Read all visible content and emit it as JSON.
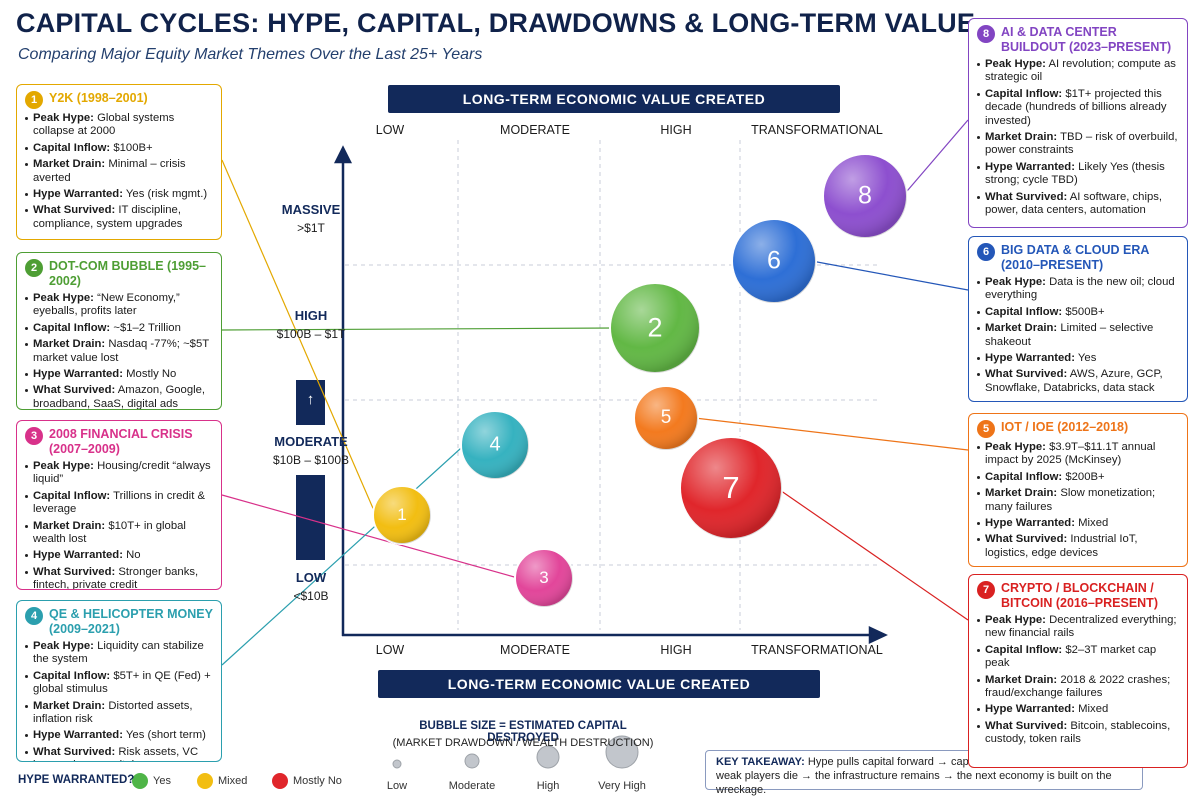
{
  "header": {
    "title": "CAPITAL CYCLES: HYPE, CAPITAL, DRAWDOWNS & LONG-TERM VALUE",
    "subtitle": "Comparing Major Equity Market Themes Over the Last 25+ Years"
  },
  "panels": [
    {
      "number": "1",
      "title": "Y2K (1998–2001)",
      "color": "#e3a800",
      "items": [
        {
          "label": "Peak Hype:",
          "text": "Global systems collapse at 2000"
        },
        {
          "label": "Capital Inflow:",
          "text": "$100B+"
        },
        {
          "label": "Market Drain:",
          "text": "Minimal – crisis averted"
        },
        {
          "label": "Hype Warranted:",
          "text": "Yes (risk mgmt.)"
        },
        {
          "label": "What Survived:",
          "text": "IT discipline, compliance, system upgrades"
        }
      ]
    },
    {
      "number": "2",
      "title": "DOT-COM BUBBLE (1995–2002)",
      "color": "#4e9e34",
      "items": [
        {
          "label": "Peak Hype:",
          "text": "“New Economy,” eyeballs, profits later"
        },
        {
          "label": "Capital Inflow:",
          "text": "~$1–2 Trillion"
        },
        {
          "label": "Market Drain:",
          "text": "Nasdaq -77%; ~$5T market value lost"
        },
        {
          "label": "Hype Warranted:",
          "text": "Mostly No"
        },
        {
          "label": "What Survived:",
          "text": "Amazon, Google, broadband, SaaS, digital ads"
        }
      ]
    },
    {
      "number": "3",
      "title": "2008 FINANCIAL CRISIS (2007–2009)",
      "color": "#d8318a",
      "items": [
        {
          "label": "Peak Hype:",
          "text": "Housing/credit “always liquid”"
        },
        {
          "label": "Capital Inflow:",
          "text": "Trillions in credit & leverage"
        },
        {
          "label": "Market Drain:",
          "text": "$10T+ in global wealth lost"
        },
        {
          "label": "Hype Warranted:",
          "text": "No"
        },
        {
          "label": "What Survived:",
          "text": "Stronger banks, fintech, private credit"
        }
      ]
    },
    {
      "number": "4",
      "title": "QE & HELICOPTER MONEY (2009–2021)",
      "color": "#2b9fae",
      "items": [
        {
          "label": "Peak Hype:",
          "text": "Liquidity can stabilize the system"
        },
        {
          "label": "Capital Inflow:",
          "text": "$5T+ in QE (Fed) + global stimulus"
        },
        {
          "label": "Market Drain:",
          "text": "Distorted assets, inflation risk"
        },
        {
          "label": "Hype Warranted:",
          "text": "Yes (short term)"
        },
        {
          "label": "What Survived:",
          "text": "Risk assets, VC boom, cheap capital economy"
        }
      ]
    },
    {
      "number": "8",
      "title": "AI & DATA CENTER BUILDOUT (2023–PRESENT)",
      "color": "#8245c2",
      "items": [
        {
          "label": "Peak Hype:",
          "text": "AI revolution; compute as strategic oil"
        },
        {
          "label": "Capital Inflow:",
          "text": "$1T+ projected this decade (hundreds of billions already invested)"
        },
        {
          "label": "Market Drain:",
          "text": "TBD – risk of overbuild, power constraints"
        },
        {
          "label": "Hype Warranted:",
          "text": "Likely Yes (thesis strong; cycle TBD)"
        },
        {
          "label": "What Survived:",
          "text": "AI software, chips, power, data centers, automation"
        }
      ]
    },
    {
      "number": "6",
      "title": "BIG DATA & CLOUD ERA (2010–PRESENT)",
      "color": "#2457b8",
      "items": [
        {
          "label": "Peak Hype:",
          "text": "Data is the new oil; cloud everything"
        },
        {
          "label": "Capital Inflow:",
          "text": "$500B+"
        },
        {
          "label": "Market Drain:",
          "text": "Limited – selective shakeout"
        },
        {
          "label": "Hype Warranted:",
          "text": "Yes"
        },
        {
          "label": "What Survived:",
          "text": "AWS, Azure, GCP, Snowflake, Databricks, data stack"
        }
      ]
    },
    {
      "number": "5",
      "title": "IOT / IOE (2012–2018)",
      "color": "#ee7418",
      "items": [
        {
          "label": "Peak Hype:",
          "text": "$3.9T–$11.1T annual impact by 2025 (McKinsey)"
        },
        {
          "label": "Capital Inflow:",
          "text": "$200B+"
        },
        {
          "label": "Market Drain:",
          "text": "Slow monetization; many failures"
        },
        {
          "label": "Hype Warranted:",
          "text": "Mixed"
        },
        {
          "label": "What Survived:",
          "text": "Industrial IoT, logistics, edge devices"
        }
      ]
    },
    {
      "number": "7",
      "title": "CRYPTO / BLOCKCHAIN / BITCOIN (2016–PRESENT)",
      "color": "#d92121",
      "items": [
        {
          "label": "Peak Hype:",
          "text": "Decentralized everything; new financial rails"
        },
        {
          "label": "Capital Inflow:",
          "text": "$2–3T market cap peak"
        },
        {
          "label": "Market Drain:",
          "text": "2018 & 2022 crashes; fraud/exchange failures"
        },
        {
          "label": "Hype Warranted:",
          "text": "Mixed"
        },
        {
          "label": "What Survived:",
          "text": "Bitcoin, stablecoins, custody, token rails"
        }
      ]
    }
  ],
  "matrix": {
    "top_banner": "LONG-TERM ECONOMIC VALUE CREATED",
    "top_levels": [
      "LOW",
      "MODERATE",
      "HIGH",
      "TRANSFORMATIONAL"
    ],
    "bottom_levels": [
      "LOW",
      "MODERATE",
      "HIGH",
      "TRANSFORMATIONAL"
    ],
    "bottom_banner": "LONG-TERM ECONOMIC VALUE CREATED",
    "y_levels": [
      {
        "name": "MASSIVE",
        "range": ">$1T"
      },
      {
        "name": "HIGH",
        "range": "$100B – $1T"
      },
      {
        "name": "MODERATE",
        "range": "$10B – $100B"
      },
      {
        "name": "LOW",
        "range": "<$10B"
      }
    ],
    "arrow": "↑",
    "bubbles": [
      {
        "label": "1",
        "color": "#f2be12"
      },
      {
        "label": "2",
        "color": "#62b845"
      },
      {
        "label": "3",
        "color": "#e2469a"
      },
      {
        "label": "4",
        "color": "#36b2c0"
      },
      {
        "label": "5",
        "color": "#f37a1f"
      },
      {
        "label": "6",
        "color": "#2e6fd6"
      },
      {
        "label": "7",
        "color": "#e0262b"
      },
      {
        "label": "8",
        "color": "#8d4fcf"
      }
    ]
  },
  "size_legend": {
    "title": "BUBBLE SIZE = ESTIMATED CAPITAL DESTROYED",
    "subtitle": "(MARKET DRAWDOWN / WEALTH DESTRUCTION)",
    "sizes": [
      "Low",
      "Moderate",
      "High",
      "Very High"
    ]
  },
  "hype_legend": {
    "title": "HYPE WARRANTED?",
    "entries": [
      {
        "name": "Yes",
        "color": "#4fb548"
      },
      {
        "name": "Mixed",
        "color": "#f2be12"
      },
      {
        "name": "Mostly No",
        "color": "#e0262b"
      }
    ]
  },
  "takeaway": {
    "label": "KEY TAKEAWAY:",
    "text": "Hype pulls capital forward → capital overbuilds infrastructure → weak players die → the infrastructure remains → the next economy is built on the wreckage."
  }
}
